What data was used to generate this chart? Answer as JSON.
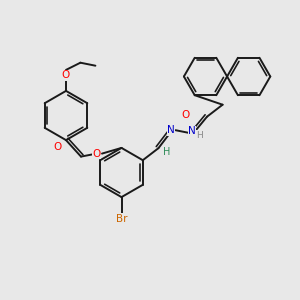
{
  "bg_color": "#e8e8e8",
  "bond_color": "#1a1a1a",
  "bond_width": 1.4,
  "atom_colors": {
    "O": "#ff0000",
    "N": "#0000cc",
    "Br": "#cc6600",
    "H_imine": "#2e8b57",
    "H_nh": "#888888"
  },
  "figsize": [
    3.0,
    3.0
  ],
  "dpi": 100,
  "xlim": [
    0,
    10
  ],
  "ylim": [
    0,
    10
  ]
}
